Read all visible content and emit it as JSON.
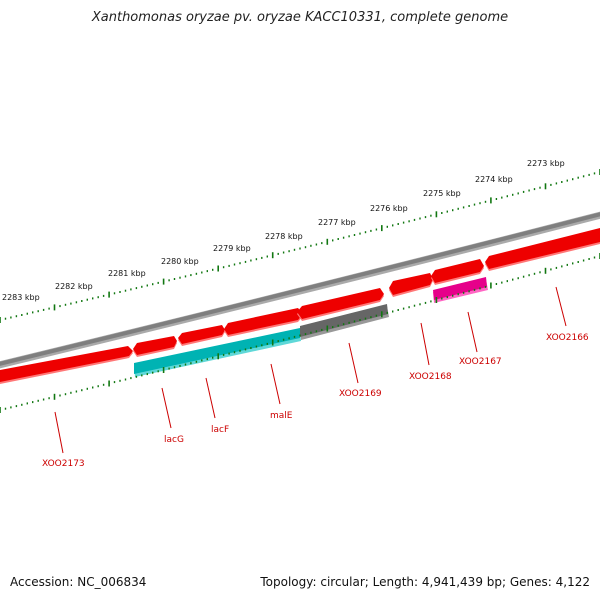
{
  "title": "Xanthomonas oryzae pv. oryzae KACC10331, complete genome",
  "footer": {
    "accession": "Accession: NC_006834",
    "summary": "Topology: circular; Length: 4,941,439 bp; Genes: 4,122"
  },
  "colors": {
    "backbone": "#7f7f7f",
    "gene_default": "#ee0000",
    "gene_shadow": "#ff6666",
    "lac_genes": "#00b3b3",
    "malE_gray": "#666666",
    "xoo2167": "#e6008a",
    "scale_ticks": "#117711",
    "label_text": "#cc0000"
  },
  "scale_labels": [
    "2283 kbp",
    "2282 kbp",
    "2281 kbp",
    "2280 kbp",
    "2279 kbp",
    "2278 kbp",
    "2277 kbp",
    "2276 kbp",
    "2275 kbp",
    "2274 kbp",
    "2273 kbp"
  ],
  "gene_labels": [
    "XOO2173",
    "lacG",
    "lacF",
    "malE",
    "XOO2169",
    "XOO2168",
    "XOO2167",
    "XOO2166"
  ]
}
